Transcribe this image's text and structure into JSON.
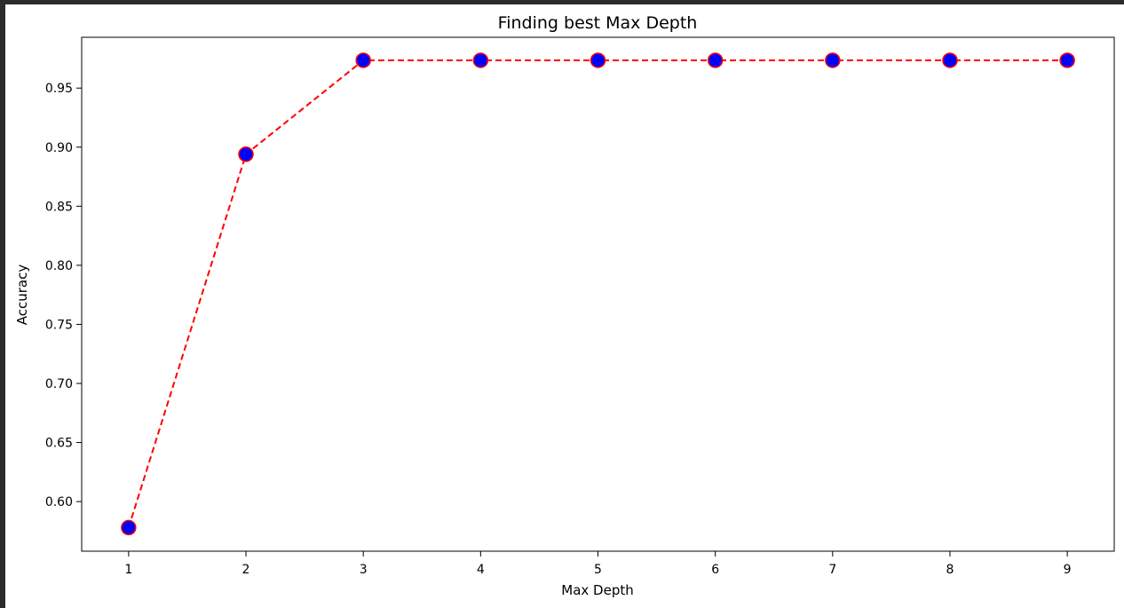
{
  "chart_data": {
    "type": "line",
    "title": "Finding best Max Depth",
    "xlabel": "Max Depth",
    "ylabel": "Accuracy",
    "x": [
      1,
      2,
      3,
      4,
      5,
      6,
      7,
      8,
      9
    ],
    "series": [
      {
        "values": [
          0.578,
          0.894,
          0.9735,
          0.9735,
          0.9735,
          0.9735,
          0.9735,
          0.9735,
          0.9735
        ],
        "line_color": "#ff0000",
        "line_style": "dashed",
        "marker": "circle",
        "marker_face_color": "#0000ff",
        "marker_edge_color": "#ff0000"
      }
    ],
    "xticks": [
      1,
      2,
      3,
      4,
      5,
      6,
      7,
      8,
      9
    ],
    "yticks": [
      "0.60",
      "0.65",
      "0.70",
      "0.75",
      "0.80",
      "0.85",
      "0.90",
      "0.95"
    ],
    "xlim": [
      0.6,
      9.4
    ],
    "ylim": [
      0.558,
      0.993
    ],
    "grid": false,
    "legend": false
  }
}
